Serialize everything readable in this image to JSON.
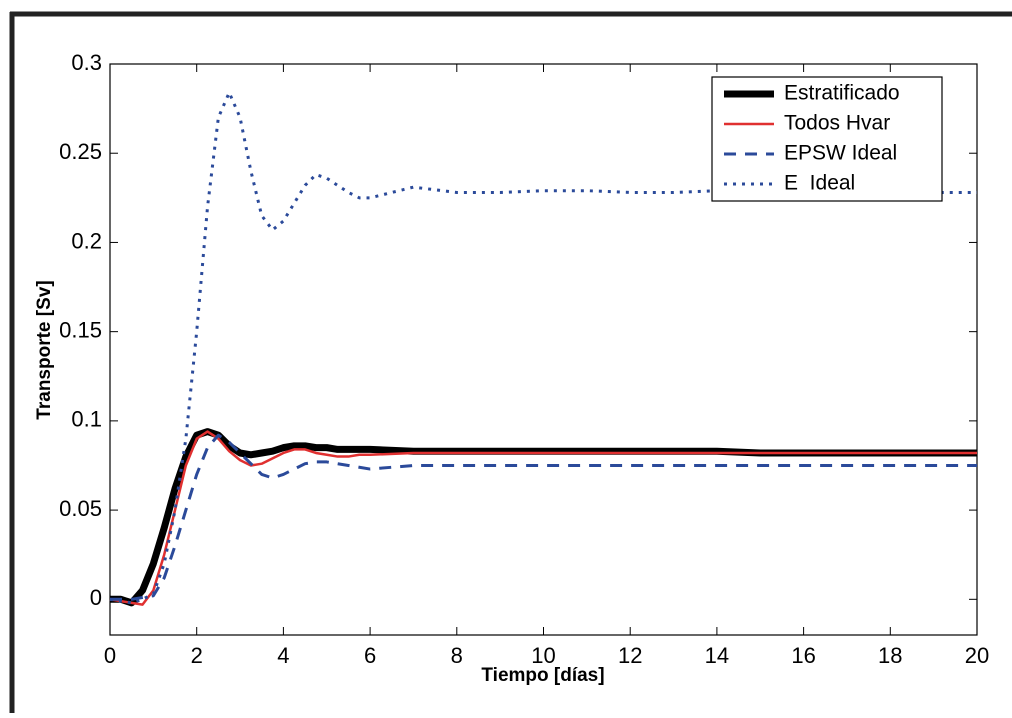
{
  "chart_data": {
    "type": "line",
    "x_label": "Tiempo [días]",
    "y_label": "Transporte [Sv]",
    "x": [
      0,
      0.25,
      0.5,
      0.75,
      1,
      1.25,
      1.5,
      1.75,
      2,
      2.25,
      2.5,
      2.75,
      3,
      3.25,
      3.5,
      3.75,
      4,
      4.25,
      4.5,
      4.75,
      5,
      5.25,
      5.5,
      5.75,
      6,
      7,
      8,
      9,
      10,
      11,
      12,
      13,
      14,
      15,
      16,
      17,
      18,
      19,
      20
    ],
    "series": [
      {
        "name": "Estratificado",
        "color": "#000000",
        "style": "solid",
        "width": 7,
        "values": [
          0,
          0,
          -0.002,
          0.005,
          0.02,
          0.04,
          0.062,
          0.08,
          0.092,
          0.094,
          0.092,
          0.086,
          0.082,
          0.081,
          0.082,
          0.083,
          0.085,
          0.086,
          0.086,
          0.085,
          0.085,
          0.084,
          0.084,
          0.084,
          0.084,
          0.083,
          0.083,
          0.083,
          0.083,
          0.083,
          0.083,
          0.083,
          0.083,
          0.082,
          0.082,
          0.082,
          0.082,
          0.082,
          0.082
        ]
      },
      {
        "name": "Todos Hvar",
        "color": "#e03030",
        "style": "solid",
        "width": 2.5,
        "values": [
          0,
          -0.001,
          -0.002,
          -0.003,
          0.005,
          0.025,
          0.05,
          0.075,
          0.09,
          0.094,
          0.09,
          0.083,
          0.078,
          0.075,
          0.076,
          0.079,
          0.082,
          0.084,
          0.084,
          0.082,
          0.081,
          0.08,
          0.08,
          0.081,
          0.081,
          0.082,
          0.082,
          0.082,
          0.082,
          0.082,
          0.082,
          0.082,
          0.082,
          0.082,
          0.082,
          0.082,
          0.082,
          0.082,
          0.082
        ]
      },
      {
        "name": "EPSW Ideal",
        "color": "#2b4a9a",
        "style": "dashed",
        "width": 3,
        "values": [
          0,
          0,
          0,
          0.001,
          0.002,
          0.012,
          0.03,
          0.05,
          0.07,
          0.085,
          0.092,
          0.088,
          0.082,
          0.076,
          0.07,
          0.068,
          0.07,
          0.073,
          0.076,
          0.077,
          0.077,
          0.076,
          0.075,
          0.074,
          0.073,
          0.075,
          0.075,
          0.075,
          0.075,
          0.075,
          0.075,
          0.075,
          0.075,
          0.075,
          0.075,
          0.075,
          0.075,
          0.075,
          0.075
        ]
      },
      {
        "name": "E  Ideal",
        "color": "#2b4a9a",
        "style": "dotted",
        "width": 3,
        "values": [
          0,
          -0.001,
          -0.002,
          0,
          0.003,
          0.02,
          0.05,
          0.09,
          0.15,
          0.22,
          0.27,
          0.284,
          0.27,
          0.24,
          0.215,
          0.207,
          0.212,
          0.222,
          0.232,
          0.238,
          0.236,
          0.232,
          0.228,
          0.225,
          0.225,
          0.231,
          0.228,
          0.228,
          0.229,
          0.229,
          0.228,
          0.228,
          0.229,
          0.229,
          0.229,
          0.229,
          0.228,
          0.228,
          0.228
        ]
      }
    ],
    "xlim": [
      0,
      20
    ],
    "xticks": [
      0,
      2,
      4,
      6,
      8,
      10,
      12,
      14,
      16,
      18,
      20
    ],
    "ylim": [
      -0.02,
      0.3
    ],
    "yticks": [
      0,
      0.05,
      0.1,
      0.15,
      0.2,
      0.25,
      0.3
    ],
    "grid": false,
    "legend": "top-right"
  }
}
